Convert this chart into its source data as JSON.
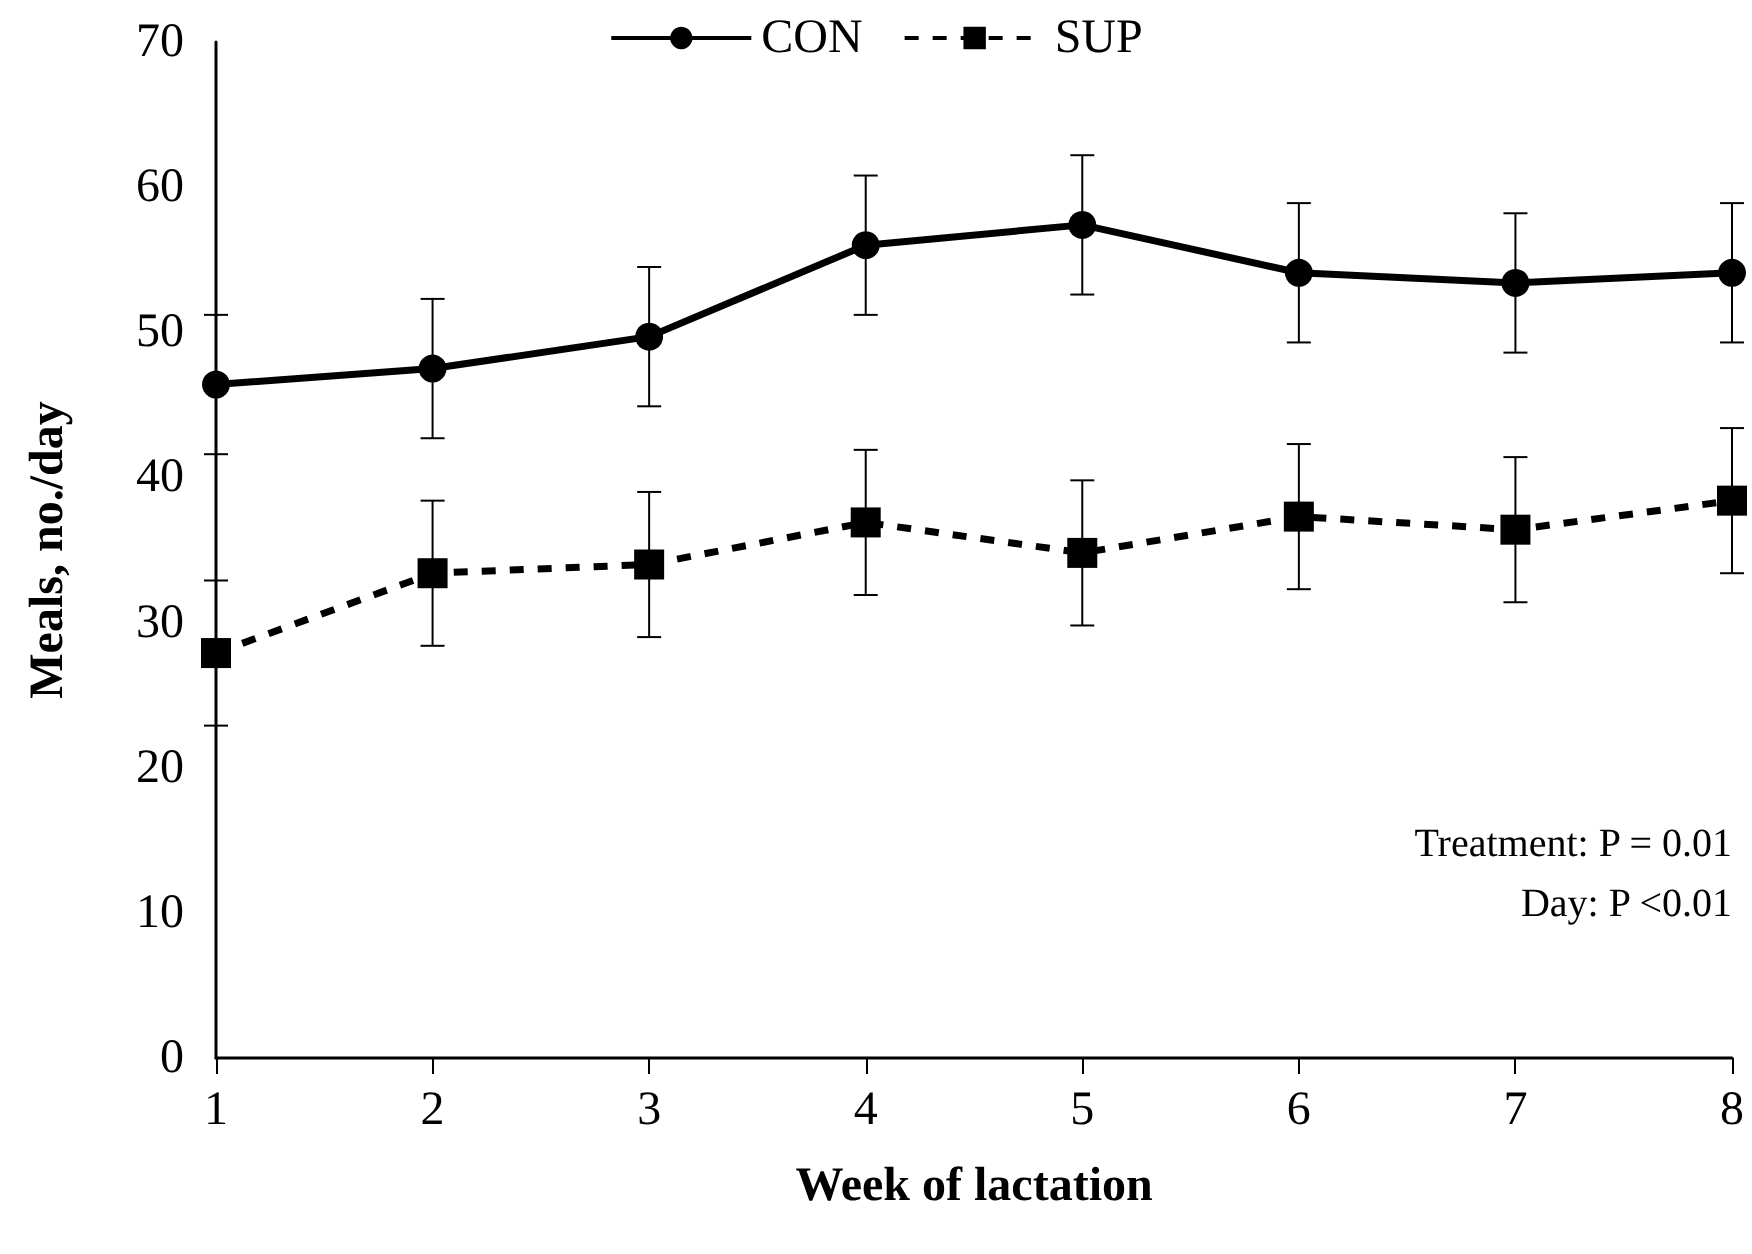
{
  "chart_data": {
    "type": "line",
    "xlabel": "Week of lactation",
    "ylabel": "Meals, no./day",
    "categories": [
      "1",
      "2",
      "3",
      "4",
      "5",
      "6",
      "7",
      "8"
    ],
    "series": [
      {
        "name": "CON",
        "color": "#000000",
        "marker": "circle",
        "line_style": "solid",
        "values": [
          46.4,
          47.5,
          49.7,
          56.0,
          57.4,
          54.1,
          53.4,
          54.1
        ],
        "errors": [
          4.8,
          4.8,
          4.8,
          4.8,
          4.8,
          4.8,
          4.8,
          4.8
        ]
      },
      {
        "name": "SUP",
        "color": "#000000",
        "marker": "square",
        "line_style": "dashed",
        "values": [
          27.9,
          33.4,
          34.0,
          36.9,
          34.8,
          37.3,
          36.4,
          38.4
        ],
        "errors": [
          5.0,
          5.0,
          5.0,
          5.0,
          5.0,
          5.0,
          5.0,
          5.0
        ]
      }
    ],
    "ylim": [
      0,
      70
    ],
    "yticks": [
      0,
      10,
      20,
      30,
      40,
      50,
      60,
      70
    ],
    "grid": false,
    "legend": "top",
    "annotations": [
      "Treatment: P = 0.01",
      "Day: P <0.01"
    ]
  }
}
